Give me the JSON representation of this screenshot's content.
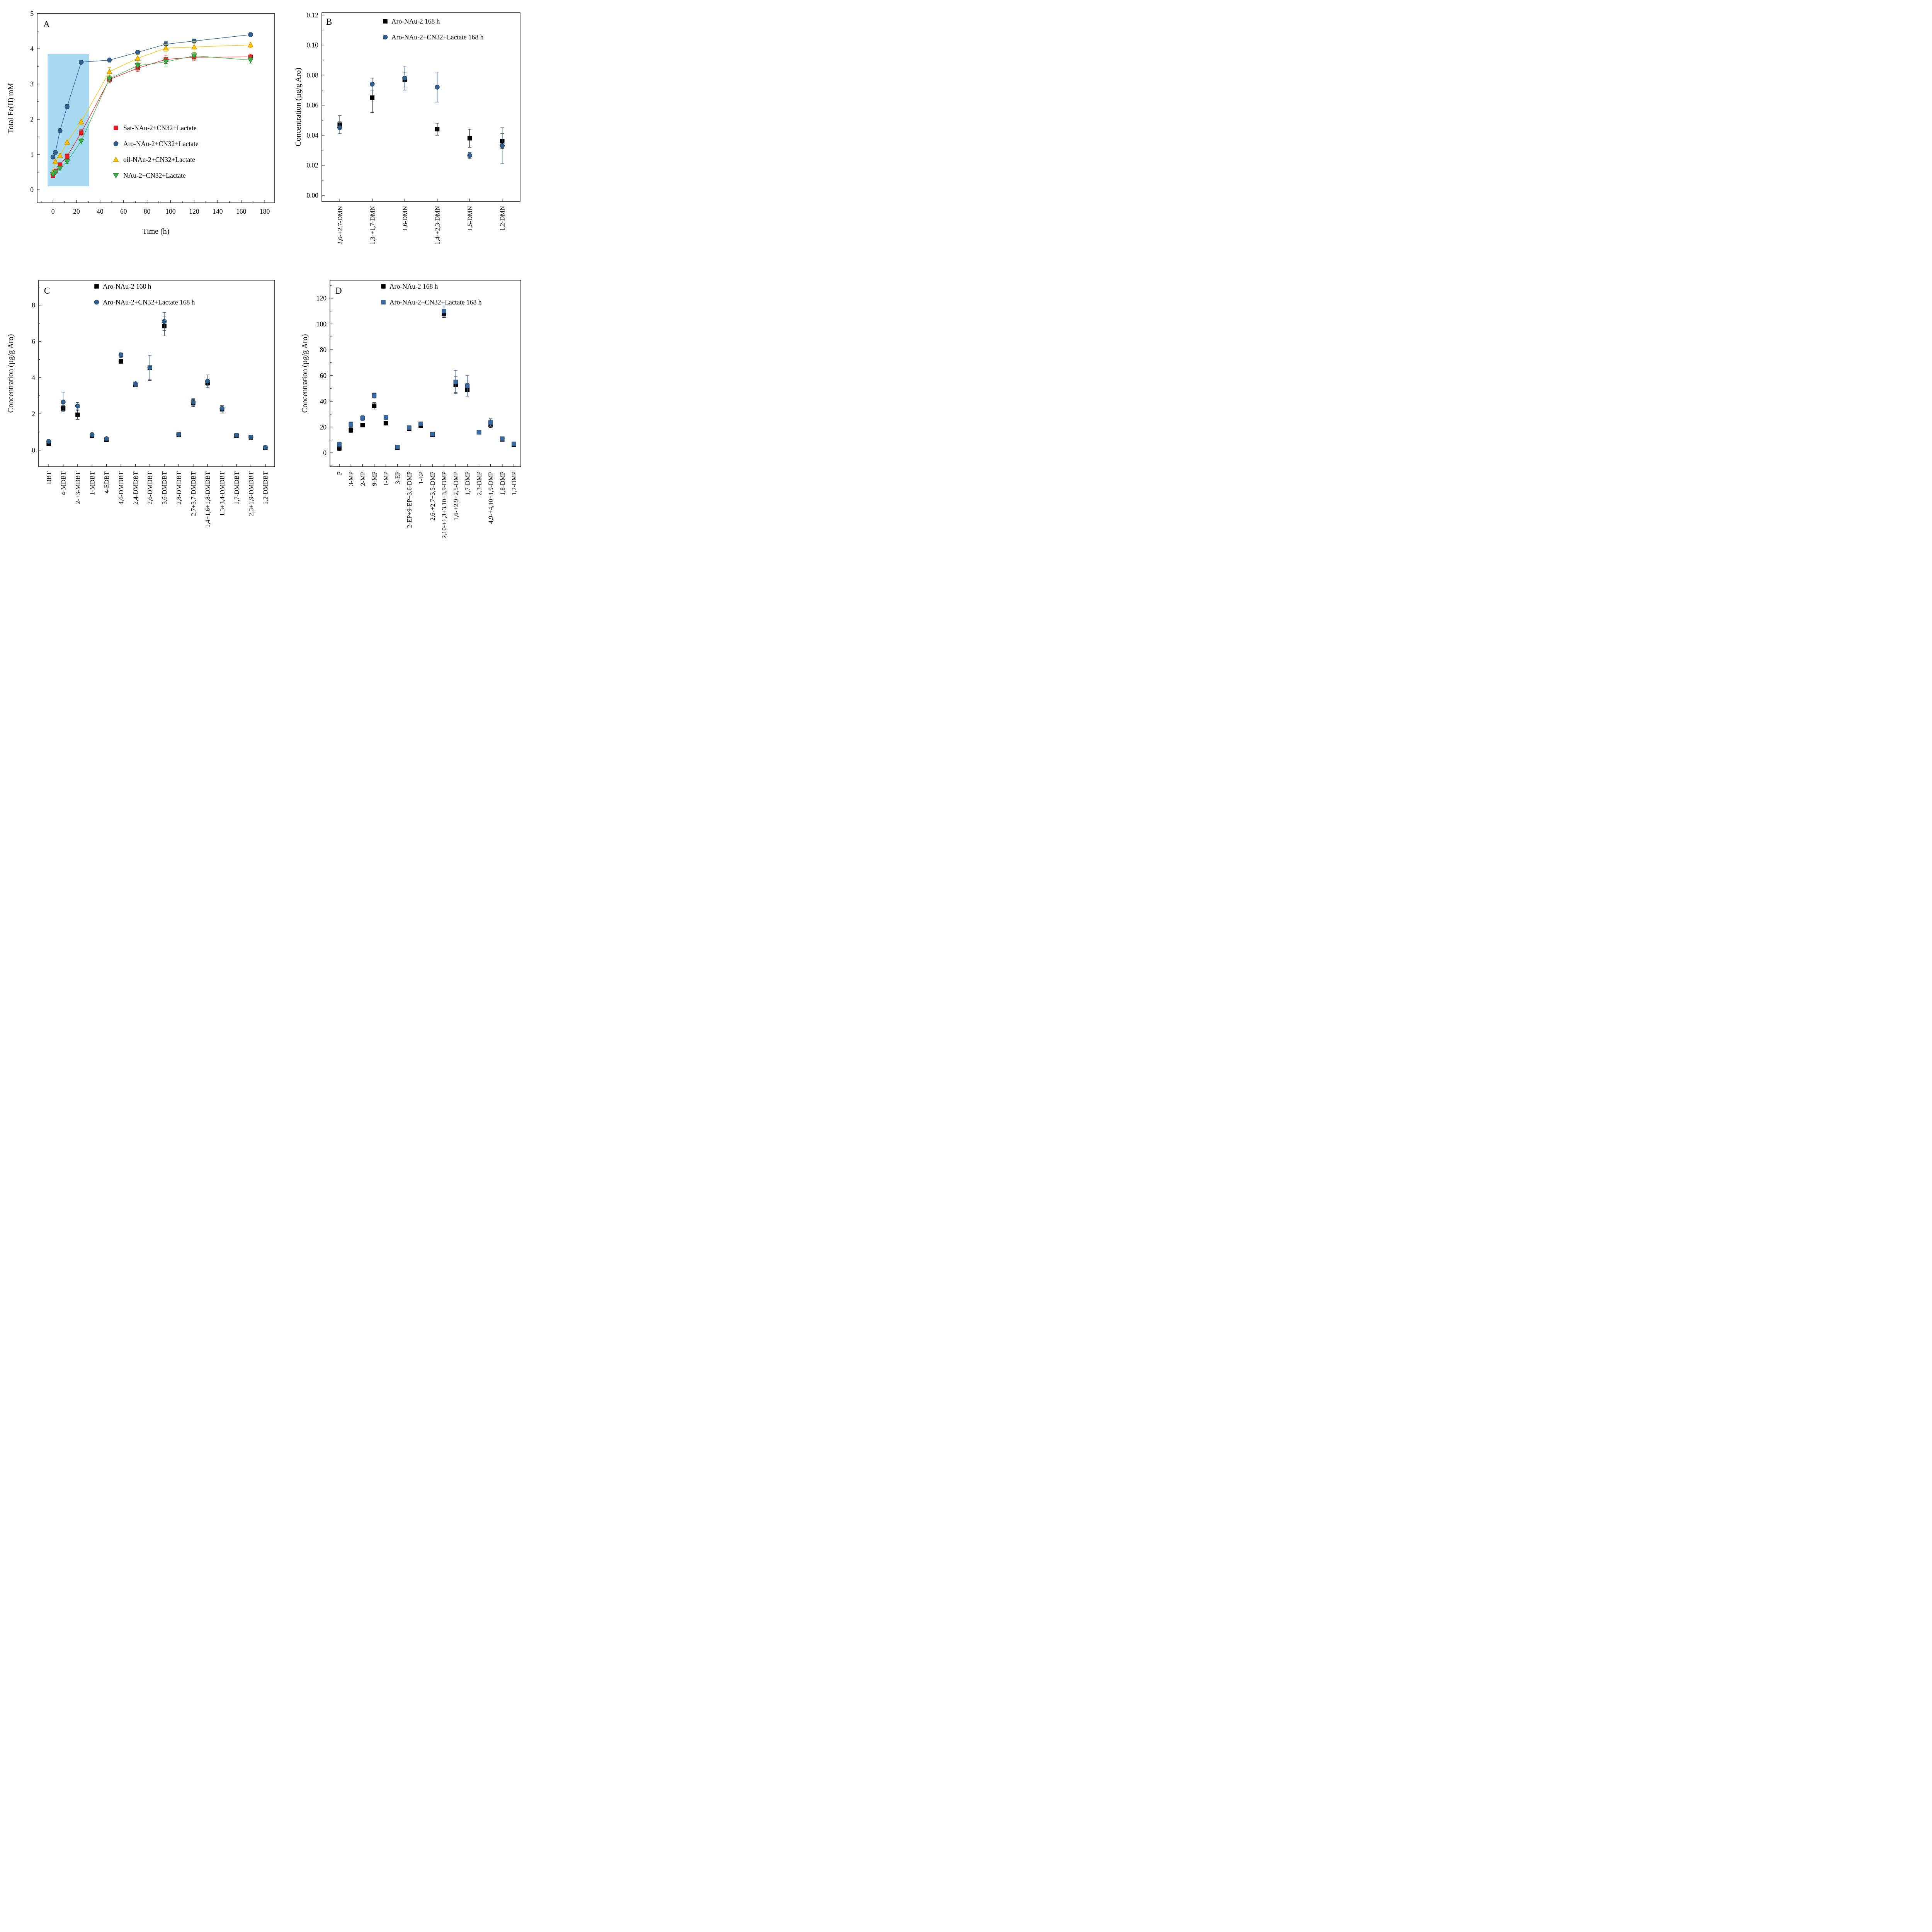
{
  "figure": {
    "background": "#ffffff"
  },
  "chart_data": [
    {
      "id": "A",
      "panel_label": "A",
      "type": "line",
      "xlabel": "Time (h)",
      "ylabel": "Total Fe(II) mM",
      "xlim": [
        -13.5,
        188.5
      ],
      "ylim": [
        -0.37,
        5
      ],
      "xticks": [
        0,
        20,
        40,
        60,
        80,
        100,
        120,
        140,
        160,
        180
      ],
      "xminor": 10,
      "yticks": [
        0,
        1,
        2,
        3,
        4,
        5
      ],
      "yminor": 0.5,
      "grid": false,
      "legend_position": "inside-center-right",
      "highlight_region": {
        "x": [
          -4.5,
          30.7
        ],
        "y": [
          0.1,
          3.85
        ],
        "color": "#a6d9f2"
      },
      "series": [
        {
          "name": "Sat-NAu-2+CN32+Lactate",
          "marker": "square",
          "color": "#ee1c25",
          "edge": "#8f0f14",
          "x": [
            0,
            2,
            6,
            12,
            24,
            48,
            72,
            96,
            120,
            168
          ],
          "y": [
            0.4,
            0.53,
            0.71,
            0.95,
            1.62,
            3.13,
            3.45,
            3.7,
            3.76,
            3.77
          ],
          "err": [
            0.06,
            0.06,
            0.06,
            0.07,
            0.09,
            0.1,
            0.1,
            0.12,
            0.1,
            0.08
          ]
        },
        {
          "name": "Aro-NAu-2+CN32+Lactate",
          "marker": "circle",
          "color": "#31608f",
          "edge": "#1d3e5f",
          "x": [
            0,
            2,
            6,
            12,
            24,
            48,
            72,
            96,
            120,
            168
          ],
          "y": [
            0.93,
            1.06,
            1.68,
            2.36,
            3.62,
            3.68,
            3.9,
            4.13,
            4.22,
            4.4
          ],
          "err": [
            0.05,
            0.05,
            0.05,
            0.06,
            0.05,
            0.06,
            0.06,
            0.08,
            0.06,
            0.06
          ]
        },
        {
          "name": "oil-NAu-2+CN32+Lactate",
          "marker": "triangle-up",
          "color": "#ffc000",
          "edge": "#b8860b",
          "x": [
            0,
            2,
            6,
            12,
            24,
            48,
            72,
            96,
            120,
            168
          ],
          "y": [
            0.5,
            0.8,
            0.97,
            1.35,
            1.93,
            3.35,
            3.73,
            4.02,
            4.05,
            4.11
          ],
          "err": [
            0.06,
            0.06,
            0.06,
            0.07,
            0.08,
            0.12,
            0.1,
            0.1,
            0.16,
            0.08
          ]
        },
        {
          "name": "NAu-2+CN32+Lactate",
          "marker": "triangle-down",
          "color": "#3faf49",
          "edge": "#1e7a2e",
          "x": [
            0,
            2,
            6,
            12,
            24,
            48,
            72,
            96,
            120,
            168
          ],
          "y": [
            0.44,
            0.5,
            0.61,
            0.8,
            1.38,
            3.15,
            3.52,
            3.63,
            3.8,
            3.68
          ],
          "err": [
            0.05,
            0.05,
            0.05,
            0.06,
            0.08,
            0.1,
            0.1,
            0.12,
            0.1,
            0.09
          ]
        }
      ]
    },
    {
      "id": "B",
      "panel_label": "B",
      "type": "scatter",
      "xlabel": "",
      "ylabel": "Concentration (µg/g Aro)",
      "xlim": [
        0.45,
        6.55
      ],
      "ylim": [
        -0.004,
        0.1215
      ],
      "yticks": [
        0,
        0.02,
        0.04,
        0.06,
        0.08,
        0.1,
        0.12
      ],
      "ytick_labels": [
        "0.00",
        "0.02",
        "0.04",
        "0.06",
        "0.08",
        "0.10",
        "0.12"
      ],
      "yminor": 0.01,
      "grid": false,
      "legend_position": "inside-top-center",
      "categories": [
        "2,6-+2,7-DMN",
        "1,3-+1,7-DMN",
        "1,6-DMN",
        "1,4-+2,3-DMN",
        "1,5-DMN",
        "1,2-DMN"
      ],
      "series": [
        {
          "name": "Aro-NAu-2 168 h",
          "marker": "square",
          "color": "#000000",
          "edge": "#000000",
          "values": [
            0.047,
            0.065,
            0.077,
            0.044,
            0.038,
            0.036
          ],
          "err": [
            0.006,
            0.01,
            0.005,
            0.004,
            0.006,
            0.005
          ]
        },
        {
          "name": "Aro-NAu-2+CN32+Lactate 168 h",
          "marker": "circle",
          "color": "#31608f",
          "edge": "#1d3e5f",
          "values": [
            0.045,
            0.074,
            0.078,
            0.072,
            0.0265,
            0.033
          ],
          "err": [
            0.004,
            0.004,
            0.008,
            0.01,
            0.002,
            0.012
          ]
        }
      ]
    },
    {
      "id": "C",
      "panel_label": "C",
      "type": "scatter",
      "xlabel": "",
      "ylabel": "Concentration (µg/g Aro)",
      "xlim": [
        0.3,
        16.65
      ],
      "ylim": [
        -0.92,
        9.38
      ],
      "yticks": [
        0,
        2,
        4,
        6,
        8
      ],
      "yminor": 1,
      "grid": false,
      "legend_position": "inside-top-center",
      "categories": [
        "DBT",
        "4-MDBT",
        "2-+3-MDBT",
        "1-MDBT",
        "4-EDBT",
        "4,6-DMDBT",
        "2,4-DMDBT",
        "2,6-DMDBT",
        "3,6-DMDBT",
        "2,8-DMDBT",
        "2,7+3,7-DMDBT",
        "1,4+1,6+1,8-DMDBT",
        "1,3+3,4-DMDBT",
        "1,7-DMDBT",
        "2,3+1,9-DMDBT",
        "1,2-DMDBT"
      ],
      "series": [
        {
          "name": "Aro-NAu-2 168 h",
          "marker": "square",
          "color": "#000000",
          "edge": "#000000",
          "values": [
            0.35,
            2.3,
            1.95,
            0.78,
            0.57,
            4.9,
            3.6,
            4.55,
            6.85,
            0.85,
            2.6,
            3.7,
            2.25,
            0.8,
            0.7,
            0.12
          ],
          "err": [
            0.06,
            0.15,
            0.25,
            0.1,
            0.08,
            0.12,
            0.1,
            0.7,
            0.55,
            0.06,
            0.2,
            0.15,
            0.2,
            0.08,
            0.06,
            0.04
          ]
        },
        {
          "name": "Aro-NAu-2+CN32+Lactate 168 h",
          "marker": "circle",
          "color": "#31608f",
          "edge": "#1d3e5f",
          "values": [
            0.48,
            2.65,
            2.43,
            0.85,
            0.63,
            5.25,
            3.65,
            4.55,
            7.1,
            0.87,
            2.65,
            3.8,
            2.3,
            0.82,
            0.72,
            0.15
          ],
          "err": [
            0.06,
            0.55,
            0.2,
            0.1,
            0.08,
            0.15,
            0.15,
            0.65,
            0.5,
            0.06,
            0.2,
            0.35,
            0.15,
            0.08,
            0.06,
            0.04
          ]
        }
      ]
    },
    {
      "id": "D",
      "panel_label": "D",
      "type": "scatter",
      "xlabel": "",
      "ylabel": "Concentration (µg/g Aro)",
      "xlim": [
        0.2,
        16.6
      ],
      "ylim": [
        -10.8,
        134
      ],
      "yticks": [
        0,
        20,
        40,
        60,
        80,
        100,
        120
      ],
      "yminor": 10,
      "grid": false,
      "legend_position": "inside-top-center",
      "categories": [
        "P",
        "3-MP",
        "2-MP",
        "9-MP",
        "1-MP",
        "3-EP",
        "2-EP+9-EP+3,6-DMP",
        "1-EP",
        "2,6-+2,7+3,5-DMP",
        "2,10-+1,3+3,10+3,9-DMP",
        "1,6-+2,9+2,5-DMP",
        "1,7-DMP",
        "2,3-DMP",
        "4,9-+4,10+1,9-DMP",
        "1,8-DMP",
        "1,2-DMP"
      ],
      "series": [
        {
          "name": "Aro-NAu-2 168 h",
          "marker": "square",
          "color": "#000000",
          "edge": "#000000",
          "values": [
            3.5,
            17.5,
            21.5,
            36.5,
            23,
            4,
            18.5,
            21,
            14,
            108,
            53,
            49,
            16,
            21.5,
            10.5,
            6.5
          ],
          "err": [
            2,
            2,
            1.5,
            2.5,
            1.5,
            1,
            1.5,
            1.5,
            1.5,
            3,
            6,
            5,
            1.5,
            2,
            1.5,
            1
          ]
        },
        {
          "name": "Aro-NAu-2+CN32+Lactate 168 h",
          "marker": "square",
          "color": "#3a6ba5",
          "edge": "#24466e",
          "values": [
            6.5,
            22,
            27,
            44.5,
            27.5,
            4.5,
            19.5,
            22.5,
            14.5,
            110,
            55,
            52,
            16,
            23.5,
            11,
            7
          ],
          "err": [
            2,
            2,
            2,
            2,
            1.5,
            1,
            1.5,
            1.5,
            1.5,
            4,
            9,
            8,
            1.5,
            3,
            1.5,
            1
          ]
        }
      ]
    }
  ]
}
